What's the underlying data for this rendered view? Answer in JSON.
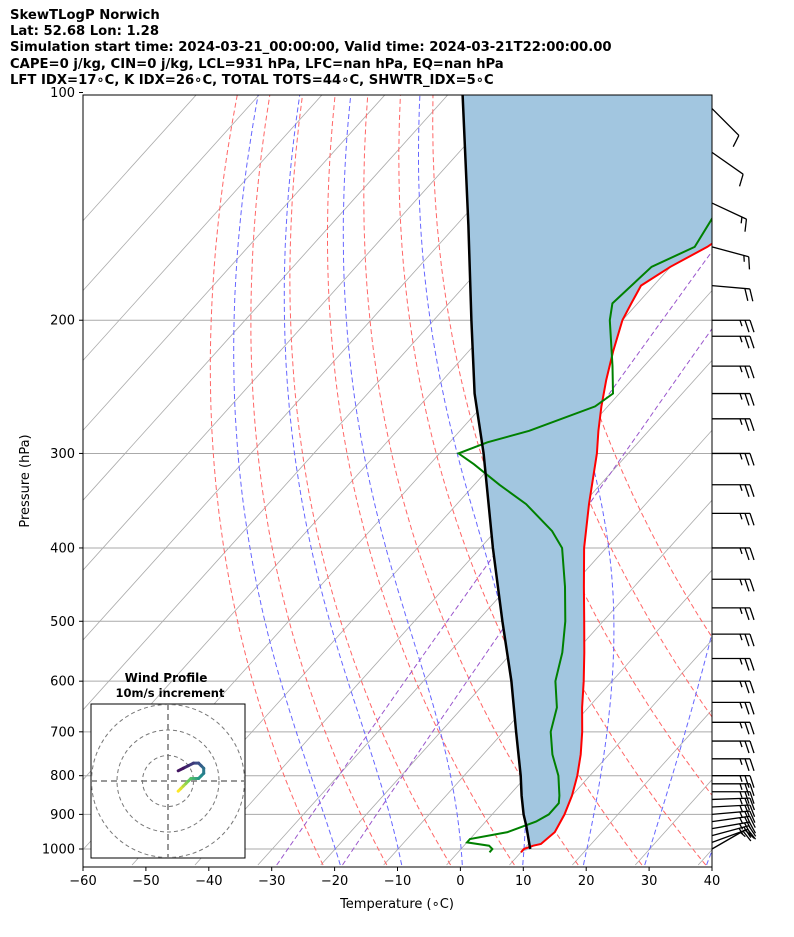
{
  "header": {
    "lines": [
      "SkewTLogP Norwich",
      "Lat: 52.68   Lon: 1.28",
      "Simulation start time: 2024-03-21_00:00:00, Valid time: 2024-03-21T22:00:00.00",
      "CAPE=0 j/kg, CIN=0 j/kg, LCL=931 hPa, LFC=nan hPa, EQ=nan hPa",
      "LFT IDX=17∘C, K IDX=26∘C, TOTAL TOTS=44∘C, SHWTR_IDX=5∘C"
    ]
  },
  "chart_data": {
    "type": "skew-t log-p",
    "title": "SkewTLogP Norwich",
    "xlabel": "Temperature (∘C)",
    "ylabel": "Pressure (hPa)",
    "xlim": [
      -60,
      40
    ],
    "ylim_hpa": [
      1050,
      100
    ],
    "y_log_scale": true,
    "grid": true,
    "x_ticks": [
      -60,
      -50,
      -40,
      -30,
      -20,
      -10,
      0,
      10,
      20,
      30,
      40
    ],
    "y_ticks": [
      100,
      200,
      300,
      400,
      500,
      600,
      700,
      800,
      900,
      1000
    ],
    "colors": {
      "temperature": "#ff0000",
      "dewpoint": "#008000",
      "parcel": "#000000",
      "cape_fill": "#a2c6e0",
      "dry_adiabats": "#ff6666",
      "moist_adiabats": "#6666ff",
      "mixing_ratio": "#9955cc",
      "isotherms": "#aaaaaa"
    },
    "temperature_profile": {
      "pressure_hpa": [
        1010,
        1000,
        990,
        985,
        950,
        900,
        850,
        800,
        750,
        700,
        650,
        600,
        550,
        500,
        450,
        400,
        350,
        300,
        280,
        260,
        240,
        220,
        200,
        190,
        180,
        170,
        160,
        150,
        140,
        130,
        120,
        110,
        100
      ],
      "temperature_c": [
        10,
        10,
        11,
        12,
        12.5,
        11.5,
        10,
        8,
        5.5,
        2.5,
        -1,
        -4.5,
        -8.5,
        -13,
        -18,
        -23.5,
        -29,
        -35,
        -38,
        -41,
        -44,
        -47,
        -50,
        -51,
        -52,
        -50,
        -47,
        -45,
        -43,
        -41,
        -40,
        -38,
        -38
      ]
    },
    "dewpoint_profile": {
      "pressure_hpa": [
        1010,
        1000,
        990,
        980,
        970,
        950,
        920,
        900,
        870,
        850,
        800,
        750,
        700,
        650,
        600,
        550,
        500,
        450,
        400,
        380,
        350,
        330,
        310,
        300,
        290,
        280,
        260,
        250,
        230,
        200,
        190,
        170,
        160,
        140,
        130,
        120,
        110,
        100
      ],
      "dewpoint_c": [
        5,
        5,
        4,
        0,
        0,
        5,
        8,
        9,
        9,
        8,
        5,
        1,
        -2.5,
        -5,
        -9,
        -12,
        -16,
        -21,
        -27,
        -31,
        -39,
        -46,
        -53,
        -57,
        -54,
        -49,
        -42,
        -41,
        -45,
        -52,
        -54,
        -53,
        -49,
        -51,
        -52,
        -51,
        -49,
        -46
      ]
    },
    "parcel_profile": {
      "pressure_hpa": [
        1000,
        931,
        900,
        850,
        800,
        700,
        600,
        500,
        400,
        300,
        250,
        200,
        150,
        100
      ],
      "temperature_c": [
        11,
        7,
        5,
        2,
        -1,
        -8,
        -16,
        -26,
        -38,
        -53,
        -63,
        -74,
        -88,
        -108
      ]
    },
    "dry_adiabats_theta_k": [
      250,
      260,
      270,
      280,
      290,
      300,
      310,
      320,
      330,
      340
    ],
    "moist_adiabats_start_c": [
      -20,
      -10,
      0,
      10,
      20,
      30,
      40
    ],
    "mixing_ratio_lines_gkg": [
      0.4,
      1
    ],
    "wind_barbs": {
      "pressure_hpa": [
        1000,
        980,
        960,
        940,
        920,
        900,
        880,
        860,
        840,
        820,
        800,
        760,
        720,
        680,
        640,
        600,
        560,
        520,
        480,
        440,
        400,
        360,
        330,
        300,
        270,
        250,
        230,
        210,
        200,
        180,
        160,
        140,
        120,
        105
      ],
      "speed_kt": [
        15,
        20,
        25,
        25,
        25,
        25,
        25,
        25,
        25,
        25,
        25,
        25,
        25,
        25,
        25,
        25,
        25,
        25,
        25,
        25,
        25,
        25,
        25,
        25,
        25,
        25,
        25,
        25,
        25,
        20,
        15,
        15,
        10,
        10
      ],
      "direction_deg": [
        240,
        250,
        255,
        260,
        262,
        265,
        267,
        268,
        270,
        270,
        270,
        270,
        270,
        270,
        270,
        270,
        270,
        270,
        270,
        270,
        270,
        270,
        270,
        270,
        270,
        270,
        270,
        270,
        270,
        275,
        285,
        295,
        305,
        315
      ]
    },
    "hodograph": {
      "title": "Wind Profile",
      "subtitle": "10m/s increment",
      "ring_radii_ms": [
        10,
        20,
        30
      ],
      "u_ms": [
        4,
        5,
        6,
        7,
        8,
        9,
        10,
        11,
        12,
        13,
        14,
        14,
        13,
        12,
        10,
        8,
        6,
        4
      ],
      "v_ms": [
        -4,
        -3,
        -2,
        -1,
        0,
        1,
        1,
        1,
        1,
        2,
        3,
        5,
        6,
        7,
        7,
        6,
        5,
        4
      ]
    }
  }
}
